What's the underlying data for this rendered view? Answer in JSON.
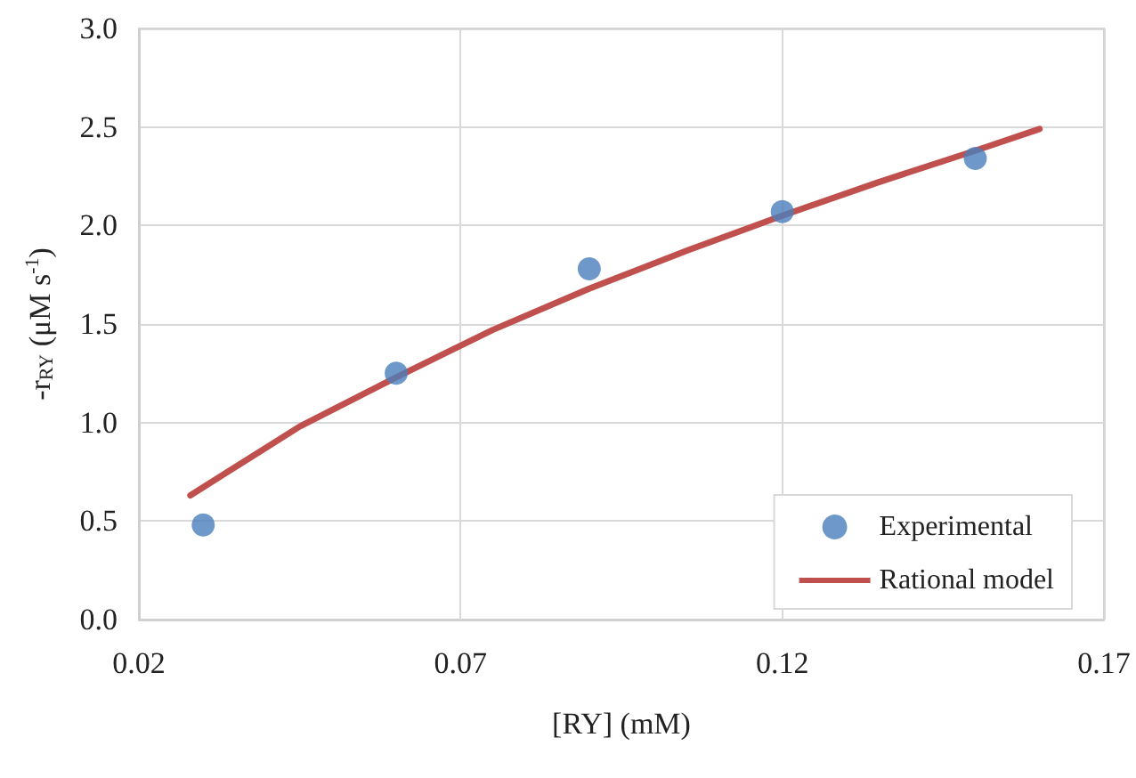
{
  "chart_data": {
    "type": "scatter",
    "xlabel": "[RY] (mM)",
    "ylabel": "-r$_{RY}$ (μM s$^{-1}$)",
    "xlim": [
      0.02,
      0.17
    ],
    "xticks": [
      0.02,
      0.07,
      0.12,
      0.17
    ],
    "ylim": [
      0,
      3
    ],
    "yticks": [
      {
        "value": 0,
        "label": "0.0"
      },
      {
        "value": 0.5,
        "label": "0.5"
      },
      {
        "value": 1,
        "label": "1.0"
      },
      {
        "value": 1.5,
        "label": "1.5"
      },
      {
        "value": 2,
        "label": "2.0"
      },
      {
        "value": 2.5,
        "label": "2.5"
      },
      {
        "value": 3,
        "label": "3.0"
      }
    ],
    "grid": true,
    "legend": "bottom right",
    "series": [
      {
        "name": "Experimental",
        "marker": "circle",
        "color": "#4a7ebb",
        "x": [
          0.03,
          0.06,
          0.09,
          0.12,
          0.15
        ],
        "values": [
          0.48,
          1.25,
          1.78,
          2.07,
          2.34
        ]
      },
      {
        "name": "Rational model",
        "type": "line",
        "marker": "none",
        "line_style": "solid",
        "color": "#c0504d",
        "x": [
          0.028,
          0.045,
          0.06,
          0.075,
          0.09,
          0.105,
          0.12,
          0.135,
          0.15,
          0.16
        ],
        "values": [
          0.63,
          0.98,
          1.23,
          1.47,
          1.68,
          1.87,
          2.05,
          2.22,
          2.38,
          2.49
        ]
      }
    ]
  }
}
